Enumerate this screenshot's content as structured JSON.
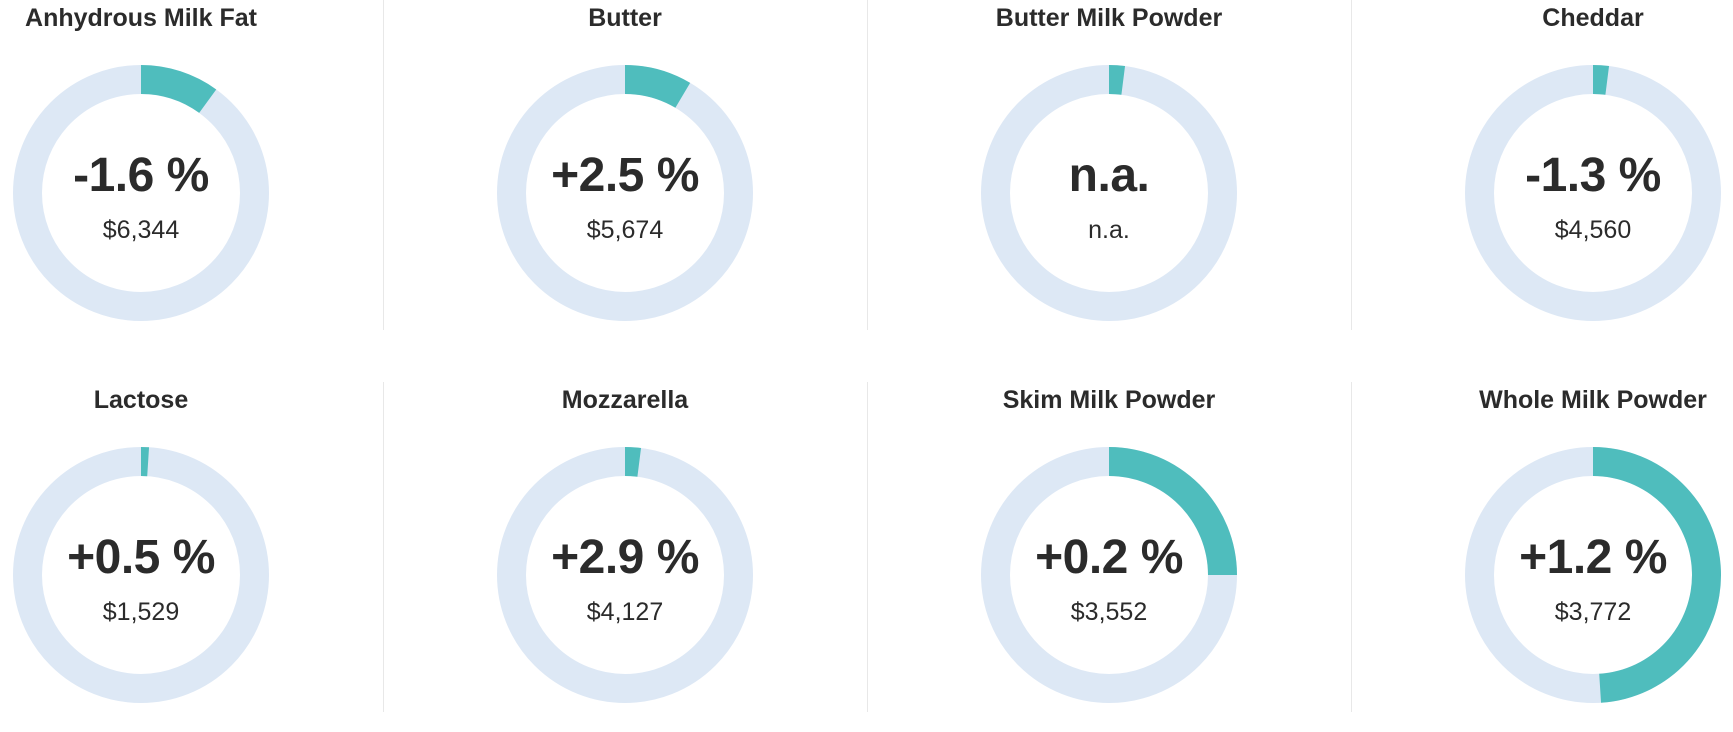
{
  "colors": {
    "track": "#dde8f5",
    "fill": "#4fbdbd",
    "text": "#2b2b2b"
  },
  "chart_data": [
    {
      "type": "donut",
      "title": "Anhydrous Milk Fat",
      "change": "-1.6 %",
      "price": "$6,344",
      "fraction": 0.1
    },
    {
      "type": "donut",
      "title": "Butter",
      "change": "+2.5 %",
      "price": "$5,674",
      "fraction": 0.085
    },
    {
      "type": "donut",
      "title": "Butter Milk Powder",
      "change": "n.a.",
      "price": "n.a.",
      "fraction": 0.02
    },
    {
      "type": "donut",
      "title": "Cheddar",
      "change": "-1.3 %",
      "price": "$4,560",
      "fraction": 0.02
    },
    {
      "type": "donut",
      "title": "Lactose",
      "change": "+0.5 %",
      "price": "$1,529",
      "fraction": 0.01
    },
    {
      "type": "donut",
      "title": "Mozzarella",
      "change": "+2.9 %",
      "price": "$4,127",
      "fraction": 0.02
    },
    {
      "type": "donut",
      "title": "Skim Milk Powder",
      "change": "+0.2 %",
      "price": "$3,552",
      "fraction": 0.25
    },
    {
      "type": "donut",
      "title": "Whole Milk Powder",
      "change": "+1.2 %",
      "price": "$3,772",
      "fraction": 0.49
    }
  ]
}
